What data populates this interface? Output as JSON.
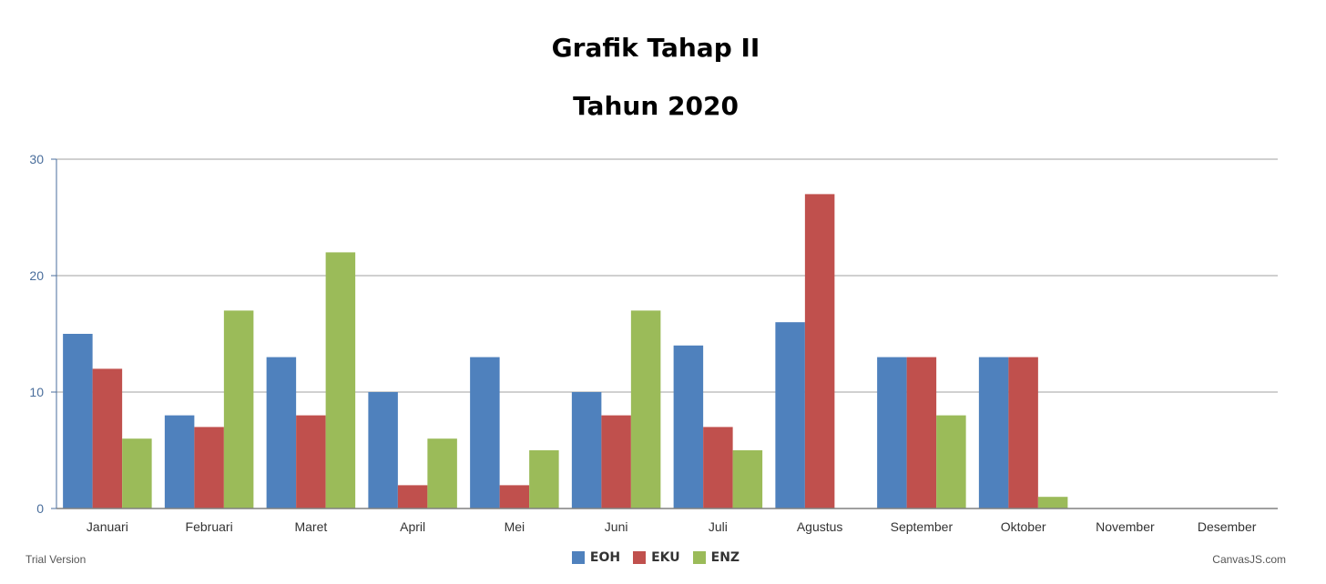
{
  "chart_data": {
    "type": "bar",
    "title": "Grafik Tahap II",
    "subtitle": "Tahun 2020",
    "categories": [
      "Januari",
      "Februari",
      "Maret",
      "April",
      "Mei",
      "Juni",
      "Juli",
      "Agustus",
      "September",
      "Oktober",
      "November",
      "Desember"
    ],
    "series": [
      {
        "name": "EOH",
        "color": "#4f81bd",
        "values": [
          15,
          8,
          13,
          10,
          13,
          10,
          14,
          16,
          13,
          13,
          0,
          0
        ]
      },
      {
        "name": "EKU",
        "color": "#c0504d",
        "values": [
          12,
          7,
          8,
          2,
          2,
          8,
          7,
          27,
          13,
          13,
          0,
          0
        ]
      },
      {
        "name": "ENZ",
        "color": "#9bbb59",
        "values": [
          6,
          17,
          22,
          6,
          5,
          17,
          5,
          0,
          8,
          1,
          0,
          0
        ]
      }
    ],
    "ylim": [
      0,
      30
    ],
    "yticks": [
      0,
      10,
      20,
      30
    ],
    "grid": true,
    "legend_position": "bottom-center"
  },
  "footer": {
    "trial_text": "Trial Version",
    "credit_text": "CanvasJS.com"
  }
}
